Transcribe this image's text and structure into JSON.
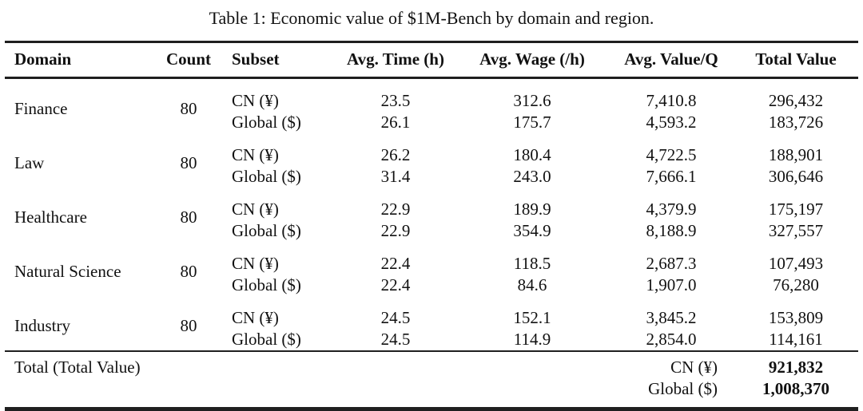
{
  "caption": "Table 1: Economic value of $1M-Bench by domain and region.",
  "columns": {
    "domain": "Domain",
    "count": "Count",
    "subset": "Subset",
    "time": "Avg. Time (h)",
    "wage": "Avg. Wage (/h)",
    "value_q": "Avg. Value/Q",
    "total": "Total Value"
  },
  "table": {
    "groups": [
      {
        "domain": "Finance",
        "count": "80",
        "rows": [
          {
            "subset": "CN (¥)",
            "time": "23.5",
            "wage": "312.6",
            "value_q": "7,410.8",
            "total": "296,432"
          },
          {
            "subset": "Global ($)",
            "time": "26.1",
            "wage": "175.7",
            "value_q": "4,593.2",
            "total": "183,726"
          }
        ]
      },
      {
        "domain": "Law",
        "count": "80",
        "rows": [
          {
            "subset": "CN (¥)",
            "time": "26.2",
            "wage": "180.4",
            "value_q": "4,722.5",
            "total": "188,901"
          },
          {
            "subset": "Global ($)",
            "time": "31.4",
            "wage": "243.0",
            "value_q": "7,666.1",
            "total": "306,646"
          }
        ]
      },
      {
        "domain": "Healthcare",
        "count": "80",
        "rows": [
          {
            "subset": "CN (¥)",
            "time": "22.9",
            "wage": "189.9",
            "value_q": "4,379.9",
            "total": "175,197"
          },
          {
            "subset": "Global ($)",
            "time": "22.9",
            "wage": "354.9",
            "value_q": "8,188.9",
            "total": "327,557"
          }
        ]
      },
      {
        "domain": "Natural Science",
        "count": "80",
        "rows": [
          {
            "subset": "CN (¥)",
            "time": "22.4",
            "wage": "118.5",
            "value_q": "2,687.3",
            "total": "107,493"
          },
          {
            "subset": "Global ($)",
            "time": "22.4",
            "wage": "84.6",
            "value_q": "1,907.0",
            "total": "76,280"
          }
        ]
      },
      {
        "domain": "Industry",
        "count": "80",
        "rows": [
          {
            "subset": "CN (¥)",
            "time": "24.5",
            "wage": "152.1",
            "value_q": "3,845.2",
            "total": "153,809"
          },
          {
            "subset": "Global ($)",
            "time": "24.5",
            "wage": "114.9",
            "value_q": "2,854.0",
            "total": "114,161"
          }
        ]
      }
    ],
    "total": {
      "label": "Total (Total Value)",
      "rows": [
        {
          "subset": "CN (¥)",
          "value": "921,832"
        },
        {
          "subset": "Global ($)",
          "value": "1,008,370"
        }
      ]
    }
  }
}
